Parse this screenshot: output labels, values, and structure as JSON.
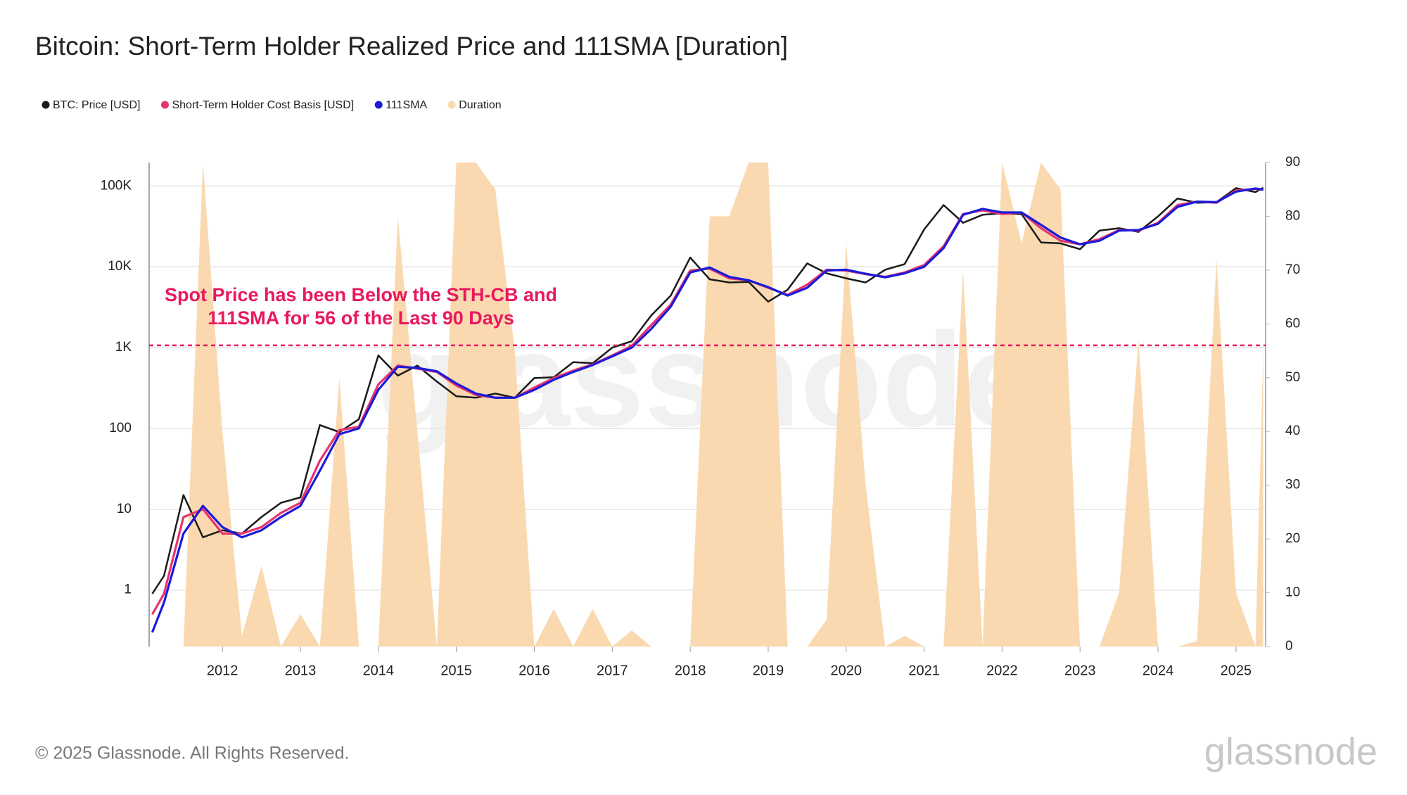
{
  "chart_data": {
    "type": "line",
    "title": "Bitcoin: Short-Term Holder Realized Price and 111SMA [Duration]",
    "annotation": [
      "Spot Price has been Below the STH-CB and",
      "111SMA for 56 of the Last 90 Days"
    ],
    "reference_line": {
      "value": 56,
      "axis": "y2",
      "color": "#e8195e"
    },
    "footer": "© 2025 Glassnode. All Rights Reserved.",
    "watermark": "glassnode",
    "log_scale": true,
    "grid": true,
    "legend": "top-left",
    "x": [
      2011.1,
      2011.25,
      2011.5,
      2011.75,
      2012.0,
      2012.25,
      2012.5,
      2012.75,
      2013.0,
      2013.25,
      2013.5,
      2013.75,
      2014.0,
      2014.25,
      2014.5,
      2014.75,
      2015.0,
      2015.25,
      2015.5,
      2015.75,
      2016.0,
      2016.25,
      2016.5,
      2016.75,
      2017.0,
      2017.25,
      2017.5,
      2017.75,
      2018.0,
      2018.25,
      2018.5,
      2018.75,
      2019.0,
      2019.25,
      2019.5,
      2019.75,
      2020.0,
      2020.25,
      2020.5,
      2020.75,
      2021.0,
      2021.25,
      2021.5,
      2021.75,
      2022.0,
      2022.25,
      2022.5,
      2022.75,
      2023.0,
      2023.25,
      2023.5,
      2023.75,
      2024.0,
      2024.25,
      2024.5,
      2024.75,
      2025.0,
      2025.25,
      2025.35
    ],
    "xlim": [
      2011.06,
      2025.38
    ],
    "xticks": [
      2012,
      2013,
      2014,
      2015,
      2016,
      2017,
      2018,
      2019,
      2020,
      2021,
      2022,
      2023,
      2024,
      2025
    ],
    "ylim": [
      0.2,
      195000
    ],
    "yticks": [
      1,
      10,
      100,
      {
        "value": 1000,
        "label": "1K"
      },
      {
        "value": 10000,
        "label": "10K"
      },
      {
        "value": 100000,
        "label": "100K"
      }
    ],
    "y2lim": [
      0,
      90
    ],
    "y2ticks": [
      0,
      10,
      20,
      30,
      40,
      50,
      60,
      70,
      80,
      90
    ],
    "series": [
      {
        "name": "BTC: Price [USD]",
        "color": "#1a1a1a",
        "values": [
          0.9,
          1.5,
          15,
          4.5,
          5.5,
          5,
          8,
          12,
          14,
          110,
          90,
          130,
          800,
          450,
          600,
          380,
          250,
          240,
          270,
          240,
          420,
          430,
          660,
          640,
          1000,
          1200,
          2500,
          4400,
          13000,
          7000,
          6400,
          6500,
          3700,
          5200,
          11000,
          8300,
          7200,
          6400,
          9200,
          10800,
          29000,
          58000,
          35000,
          44000,
          46000,
          45000,
          20000,
          19500,
          16500,
          28000,
          30000,
          27000,
          42000,
          70000,
          62000,
          63000,
          94000,
          84000,
          95000
        ]
      },
      {
        "name": "Short-Term Holder Cost Basis [USD]",
        "color": "#e8336d",
        "values": [
          0.5,
          0.9,
          8,
          10,
          5,
          5,
          6,
          9,
          12,
          40,
          95,
          105,
          350,
          600,
          550,
          500,
          340,
          260,
          240,
          240,
          320,
          420,
          520,
          620,
          800,
          1050,
          1900,
          3400,
          9000,
          9500,
          7200,
          6800,
          5500,
          4500,
          6000,
          9200,
          9000,
          8100,
          7500,
          8500,
          10500,
          18000,
          45000,
          50000,
          45000,
          47000,
          30000,
          21000,
          19000,
          22000,
          28500,
          28000,
          35000,
          58000,
          64000,
          62000,
          88000,
          92000,
          90000
        ]
      },
      {
        "name": "111SMA",
        "color": "#1a1adb",
        "values": [
          0.3,
          0.7,
          5,
          11,
          6,
          4.5,
          5.5,
          8,
          11,
          30,
          85,
          100,
          300,
          580,
          560,
          510,
          360,
          270,
          240,
          240,
          300,
          400,
          500,
          610,
          780,
          1000,
          1700,
          3200,
          8500,
          9800,
          7500,
          6800,
          5600,
          4400,
          5500,
          9000,
          9200,
          8200,
          7400,
          8300,
          10000,
          17000,
          44000,
          52000,
          47000,
          47000,
          33000,
          23000,
          19000,
          21000,
          28000,
          28500,
          34000,
          55000,
          64000,
          63000,
          85000,
          93000,
          90000
        ]
      },
      {
        "name": "Duration",
        "color": "#fad9b0",
        "axis": "y2",
        "kind": "area",
        "values": [
          0,
          0,
          0,
          90,
          40,
          2,
          15,
          0,
          6,
          0,
          50,
          0,
          0,
          80,
          40,
          0,
          90,
          90,
          85,
          55,
          0,
          7,
          0,
          7,
          0,
          3,
          0,
          0,
          0,
          80,
          80,
          90,
          90,
          0,
          0,
          5,
          75,
          30,
          0,
          2,
          0,
          0,
          70,
          0,
          90,
          75,
          90,
          85,
          0,
          0,
          10,
          57,
          0,
          0,
          1,
          72,
          10,
          0,
          55
        ]
      }
    ]
  }
}
